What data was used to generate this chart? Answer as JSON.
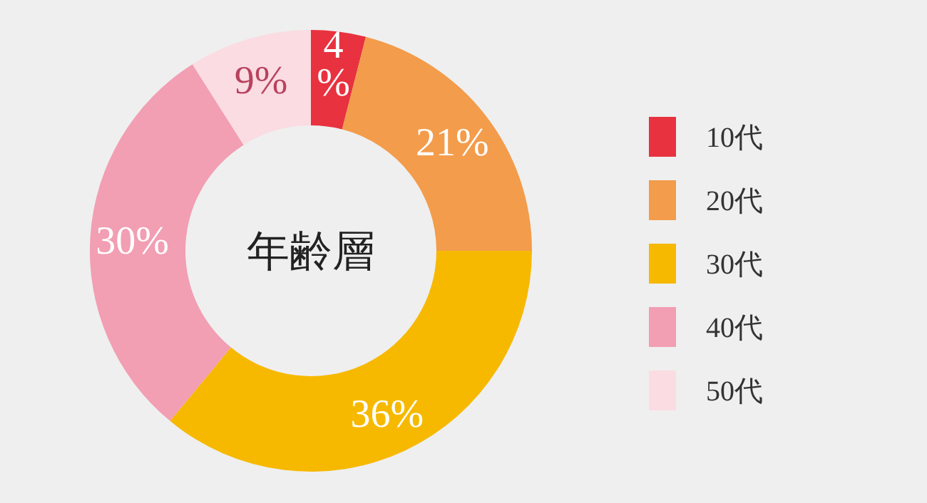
{
  "chart_data": {
    "type": "donut",
    "title": "年齢層",
    "categories": [
      "10代",
      "20代",
      "30代",
      "40代",
      "50代"
    ],
    "values": [
      4,
      21,
      36,
      30,
      9
    ],
    "value_labels": [
      "4%",
      "21%",
      "36%",
      "30%",
      "9%"
    ],
    "colors": [
      "#e8323f",
      "#f39c4b",
      "#f6b900",
      "#f29eb3",
      "#fbdce2"
    ],
    "legend": "right"
  }
}
